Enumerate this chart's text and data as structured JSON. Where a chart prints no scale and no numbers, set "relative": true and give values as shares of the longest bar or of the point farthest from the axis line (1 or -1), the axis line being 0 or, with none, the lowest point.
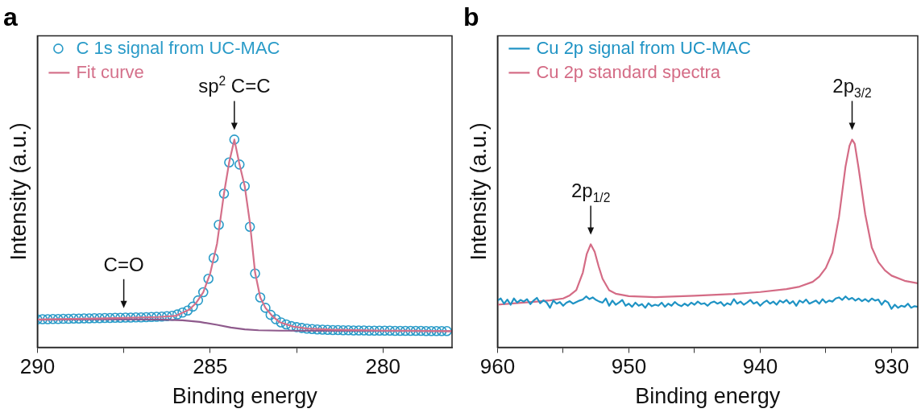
{
  "chart_data": [
    {
      "type": "scatter",
      "title": "a",
      "xlabel": "Binding energy",
      "ylabel": "Intensity (a.u.)",
      "relative": true,
      "xlim": [
        290,
        278
      ],
      "xticks": [
        290,
        {
          "value": 287.5,
          "label": null
        },
        285,
        {
          "value": 282.5,
          "label": null
        },
        280
      ],
      "tick_labels": "x",
      "legend": "top left",
      "annotations": [
        {
          "text": "C=O",
          "x": 287.5,
          "y": 0.142
        },
        {
          "text": "sp$^{2}$ C=C",
          "x": 284.3,
          "y": 1
        }
      ],
      "series": [
        {
          "name": "C 1s signal from UC-MAC",
          "marker": "circle",
          "color": "#2a9bc8",
          "x": [
            290,
            289.85,
            289.7,
            289.55,
            289.4,
            289.25,
            289.1,
            288.95,
            288.8,
            288.65,
            288.5,
            288.35,
            288.2,
            288.05,
            287.9,
            287.75,
            287.6,
            287.45,
            287.3,
            287.15,
            287,
            286.85,
            286.7,
            286.55,
            286.4,
            286.25,
            286.1,
            285.95,
            285.8,
            285.65,
            285.5,
            285.35,
            285.2,
            285.05,
            284.9,
            284.75,
            284.6,
            284.45,
            284.3,
            284.15,
            284,
            283.85,
            283.7,
            283.55,
            283.4,
            283.25,
            283.1,
            282.95,
            282.8,
            282.65,
            282.5,
            282.35,
            282.2,
            282.05,
            281.9,
            281.75,
            281.6,
            281.45,
            281.3,
            281.15,
            281,
            280.85,
            280.7,
            280.55,
            280.4,
            280.25,
            280.1,
            279.95,
            279.8,
            279.65,
            279.5,
            279.35,
            279.2,
            279.05,
            278.9,
            278.75,
            278.6,
            278.45,
            278.3,
            278.15
          ],
          "values": [
            0.134,
            0.135,
            0.135,
            0.136,
            0.136,
            0.137,
            0.137,
            0.138,
            0.138,
            0.139,
            0.139,
            0.14,
            0.14,
            0.141,
            0.141,
            0.142,
            0.142,
            0.143,
            0.143,
            0.144,
            0.144,
            0.145,
            0.146,
            0.147,
            0.148,
            0.15,
            0.152,
            0.158,
            0.167,
            0.177,
            0.196,
            0.226,
            0.265,
            0.33,
            0.43,
            0.59,
            0.74,
            0.89,
            1,
            0.88,
            0.776,
            0.58,
            0.355,
            0.24,
            0.19,
            0.156,
            0.135,
            0.12,
            0.11,
            0.102,
            0.097,
            0.093,
            0.09,
            0.088,
            0.086,
            0.085,
            0.084,
            0.083,
            0.083,
            0.082,
            0.082,
            0.081,
            0.081,
            0.081,
            0.08,
            0.08,
            0.08,
            0.08,
            0.08,
            0.079,
            0.079,
            0.079,
            0.079,
            0.079,
            0.079,
            0.078,
            0.078,
            0.078,
            0.078,
            0.078
          ]
        },
        {
          "name": "Fit curve",
          "type": "line",
          "color": "#d4708a",
          "x": [
            290,
            289,
            288,
            287,
            286.5,
            286,
            285.8,
            285.6,
            285.4,
            285.2,
            285,
            284.8,
            284.6,
            284.45,
            284.3,
            284.15,
            284,
            283.85,
            283.7,
            283.55,
            283.4,
            283.2,
            283,
            282.6,
            282.2,
            281.5,
            280,
            278
          ],
          "values": [
            0.134,
            0.137,
            0.14,
            0.144,
            0.146,
            0.151,
            0.166,
            0.182,
            0.215,
            0.265,
            0.355,
            0.5,
            0.74,
            0.89,
            1,
            0.88,
            0.776,
            0.6,
            0.36,
            0.24,
            0.19,
            0.15,
            0.122,
            0.1,
            0.09,
            0.085,
            0.08,
            0.078
          ]
        },
        {
          "type": "line",
          "color": "#8e5a8c",
          "x": [
            290,
            288,
            286.5,
            285.8,
            285.3,
            284.8,
            284.4,
            284,
            283.6,
            283,
            278
          ],
          "values": [
            0.133,
            0.135,
            0.134,
            0.13,
            0.122,
            0.108,
            0.095,
            0.086,
            0.082,
            0.08,
            0.078
          ]
        }
      ]
    },
    {
      "type": "line",
      "title": "b",
      "xlabel": "Binding energy",
      "ylabel": "Intensity (a.u.)",
      "relative": true,
      "xlim": [
        960,
        928
      ],
      "xticks": [
        960,
        {
          "value": 955,
          "label": null
        },
        950,
        {
          "value": 945,
          "label": null
        },
        940,
        {
          "value": 935,
          "label": null
        },
        930
      ],
      "tick_labels": "x",
      "legend": "top left",
      "annotations": [
        {
          "text": "2p$_{1/2}$",
          "x": 952.9,
          "y": 0.496
        },
        {
          "text": "2p$_{3/2}$",
          "x": 933,
          "y": 1
        }
      ],
      "series": [
        {
          "name": "Cu 2p signal from UC-MAC",
          "color": "#1f93c4",
          "x": [
            960,
            959.75,
            959.5,
            959.25,
            959,
            958.75,
            958.5,
            958.25,
            958,
            957.75,
            957.5,
            957.25,
            957,
            956.75,
            956.5,
            956.25,
            956,
            955.75,
            955.5,
            955.25,
            955,
            954.75,
            954.5,
            954.25,
            954,
            953.75,
            953.5,
            953.25,
            953,
            952.75,
            952.5,
            952.25,
            952,
            951.75,
            951.5,
            951.25,
            951,
            950.75,
            950.5,
            950.25,
            950,
            949.75,
            949.5,
            949.25,
            949,
            948.75,
            948.5,
            948.25,
            948,
            947.75,
            947.5,
            947.25,
            947,
            946.75,
            946.5,
            946.25,
            946,
            945.75,
            945.5,
            945.25,
            945,
            944.75,
            944.5,
            944.25,
            944,
            943.75,
            943.5,
            943.25,
            943,
            942.75,
            942.5,
            942.25,
            942,
            941.75,
            941.5,
            941.25,
            941,
            940.75,
            940.5,
            940.25,
            940,
            939.75,
            939.5,
            939.25,
            939,
            938.75,
            938.5,
            938.25,
            938,
            937.75,
            937.5,
            937.25,
            937,
            936.75,
            936.5,
            936.25,
            936,
            935.75,
            935.5,
            935.25,
            935,
            934.75,
            934.5,
            934.25,
            934,
            933.75,
            933.5,
            933.25,
            933,
            932.75,
            932.5,
            932.25,
            932,
            931.75,
            931.5,
            931.25,
            931,
            930.75,
            930.5,
            930.25,
            930,
            929.75,
            929.5,
            929.25,
            929,
            928.75,
            928.5,
            928.25,
            928
          ],
          "values": [
            0.225,
            0.235,
            0.21,
            0.23,
            0.205,
            0.235,
            0.215,
            0.228,
            0.22,
            0.232,
            0.208,
            0.225,
            0.238,
            0.212,
            0.226,
            0.215,
            0.19,
            0.225,
            0.21,
            0.218,
            0.2,
            0.215,
            0.222,
            0.21,
            0.218,
            0.225,
            0.23,
            0.245,
            0.232,
            0.24,
            0.228,
            0.22,
            0.215,
            0.235,
            0.2,
            0.225,
            0.205,
            0.215,
            0.228,
            0.2,
            0.21,
            0.195,
            0.215,
            0.2,
            0.208,
            0.19,
            0.212,
            0.198,
            0.205,
            0.2,
            0.215,
            0.195,
            0.21,
            0.2,
            0.218,
            0.205,
            0.198,
            0.21,
            0.2,
            0.215,
            0.205,
            0.22,
            0.208,
            0.212,
            0.2,
            0.215,
            0.22,
            0.21,
            0.218,
            0.2,
            0.212,
            0.205,
            0.232,
            0.21,
            0.22,
            0.205,
            0.215,
            0.228,
            0.21,
            0.218,
            0.2,
            0.215,
            0.225,
            0.21,
            0.22,
            0.205,
            0.225,
            0.215,
            0.228,
            0.21,
            0.222,
            0.2,
            0.225,
            0.215,
            0.23,
            0.21,
            0.218,
            0.225,
            0.21,
            0.232,
            0.215,
            0.225,
            0.22,
            0.235,
            0.24,
            0.228,
            0.245,
            0.23,
            0.238,
            0.225,
            0.235,
            0.222,
            0.232,
            0.22,
            0.235,
            0.225,
            0.23,
            0.205,
            0.225,
            0.215,
            0.185,
            0.205,
            0.19,
            0.2,
            0.195,
            0.21,
            0.19,
            0.198,
            0.195
          ]
        },
        {
          "name": "Cu 2p standard spectra",
          "color": "#d46b85",
          "x": [
            960,
            959,
            958,
            957,
            956,
            955,
            954.5,
            954,
            953.5,
            953.2,
            952.9,
            952.6,
            952.3,
            952,
            951.5,
            951,
            950,
            948,
            945,
            942,
            940,
            938,
            937,
            936,
            935.5,
            935,
            934.5,
            934,
            933.5,
            933.2,
            933,
            932.8,
            932.5,
            932,
            931.5,
            931,
            930.5,
            930,
            929,
            928
          ],
          "values": [
            0.205,
            0.21,
            0.215,
            0.22,
            0.226,
            0.235,
            0.25,
            0.275,
            0.36,
            0.45,
            0.496,
            0.46,
            0.39,
            0.33,
            0.275,
            0.258,
            0.246,
            0.241,
            0.248,
            0.257,
            0.266,
            0.28,
            0.292,
            0.315,
            0.34,
            0.382,
            0.455,
            0.627,
            0.871,
            0.97,
            1,
            0.98,
            0.86,
            0.64,
            0.48,
            0.41,
            0.37,
            0.345,
            0.32,
            0.308
          ]
        }
      ]
    }
  ]
}
